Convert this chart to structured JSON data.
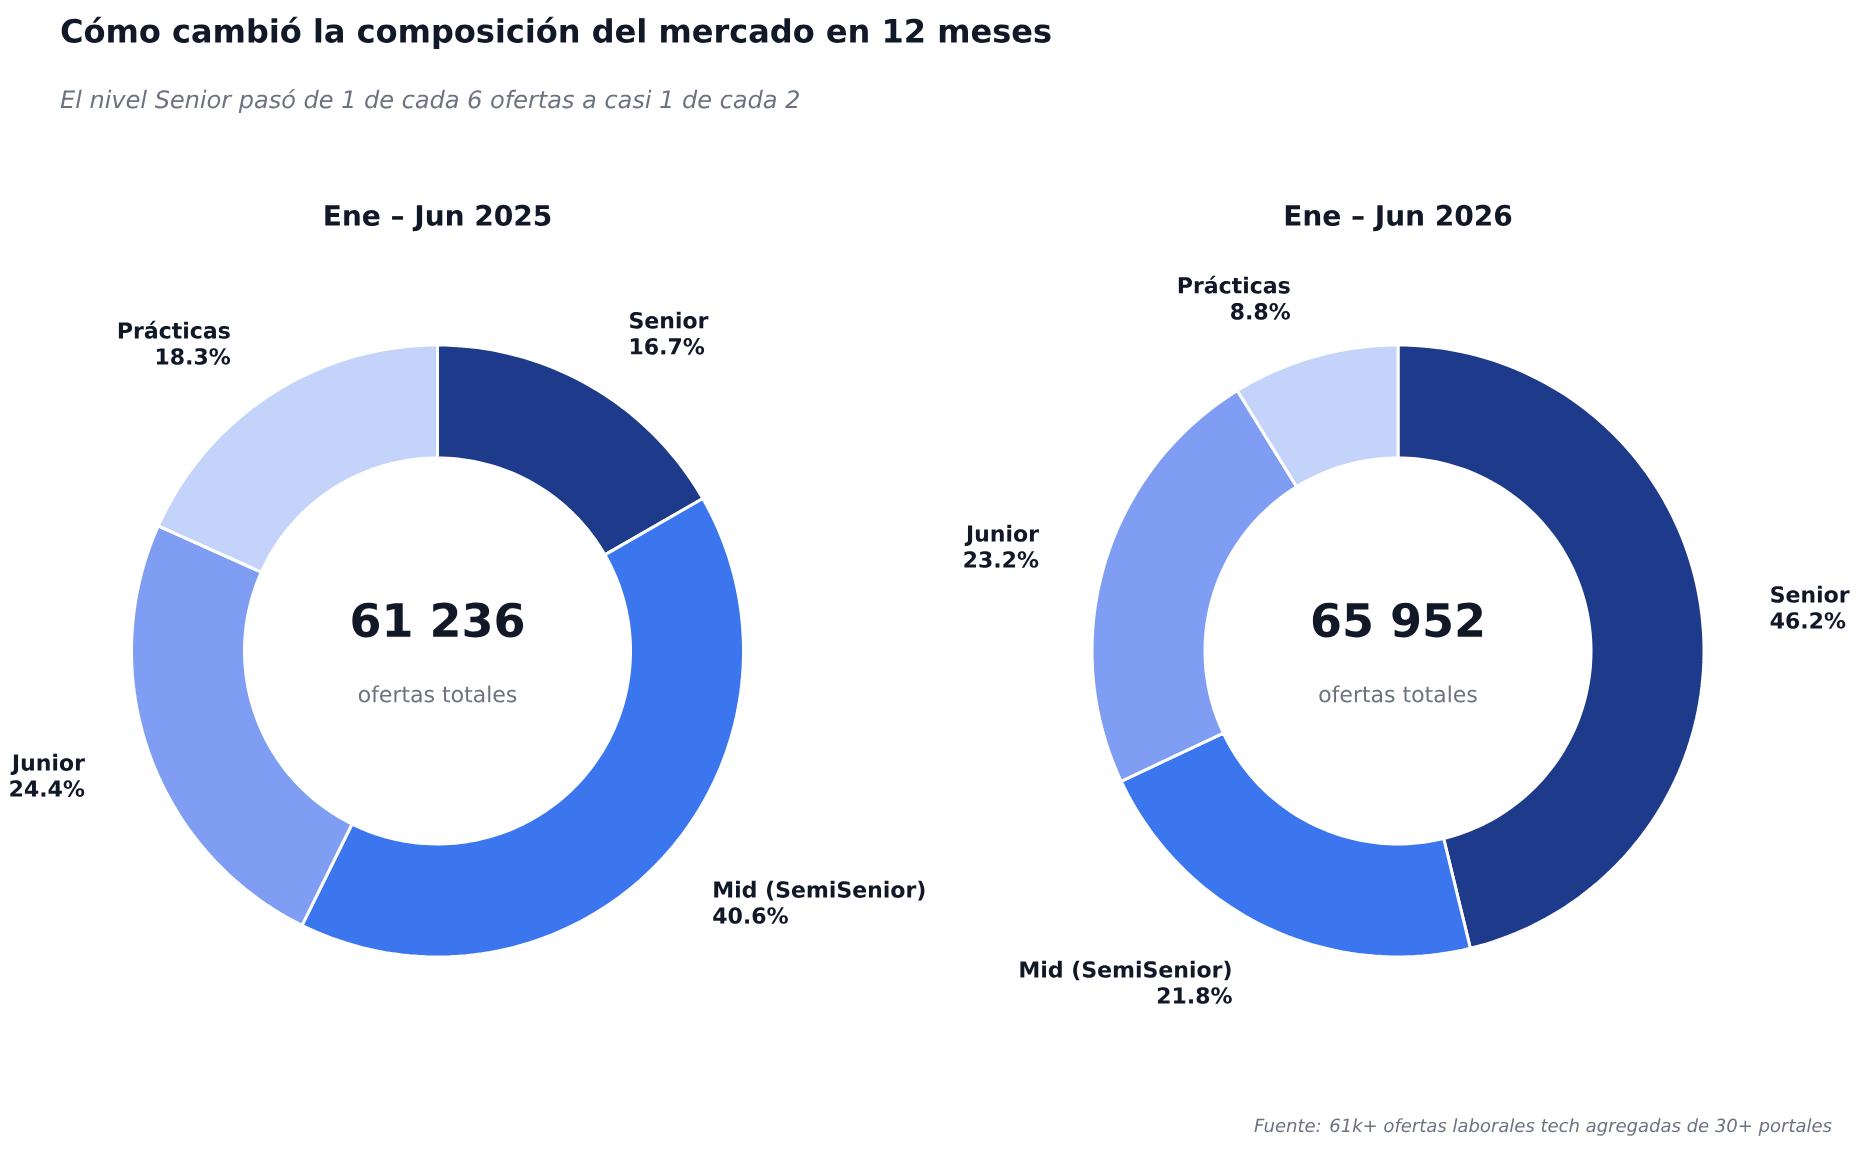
{
  "chart_data": [
    {
      "type": "donut",
      "title": "Ene – Jun 2025",
      "categories": [
        "Senior",
        "Mid (SemiSenior)",
        "Junior",
        "Prácticas"
      ],
      "values": [
        16.7,
        40.6,
        24.4,
        18.3
      ],
      "colors": [
        "#1e3a8a",
        "#3b76ef",
        "#7f9ef3",
        "#c4d3fa"
      ],
      "value_labels": [
        "16.7%",
        "40.6%",
        "24.4%",
        "18.3%"
      ],
      "annotations": [
        "Cómo cambió la composición del mercado en 12 meses",
        "El nivel Senior pasó de 1 de cada 6 ofertas a casi 1 de cada 2",
        "61 236",
        "ofertas totales"
      ]
    },
    {
      "type": "donut",
      "title": "Ene – Jun 2026",
      "categories": [
        "Senior",
        "Mid (SemiSenior)",
        "Junior",
        "Prácticas"
      ],
      "values": [
        46.2,
        21.8,
        23.2,
        8.8
      ],
      "colors": [
        "#1e3a8a",
        "#3b76ef",
        "#7f9ef3",
        "#c4d3fa"
      ],
      "value_labels": [
        "46.2%",
        "21.8%",
        "23.2%",
        "8.8%"
      ],
      "annotations": [
        "65 952",
        "ofertas totales",
        "Fuente: 61k+ ofertas laborales tech agregadas de 30+ portales"
      ]
    }
  ]
}
